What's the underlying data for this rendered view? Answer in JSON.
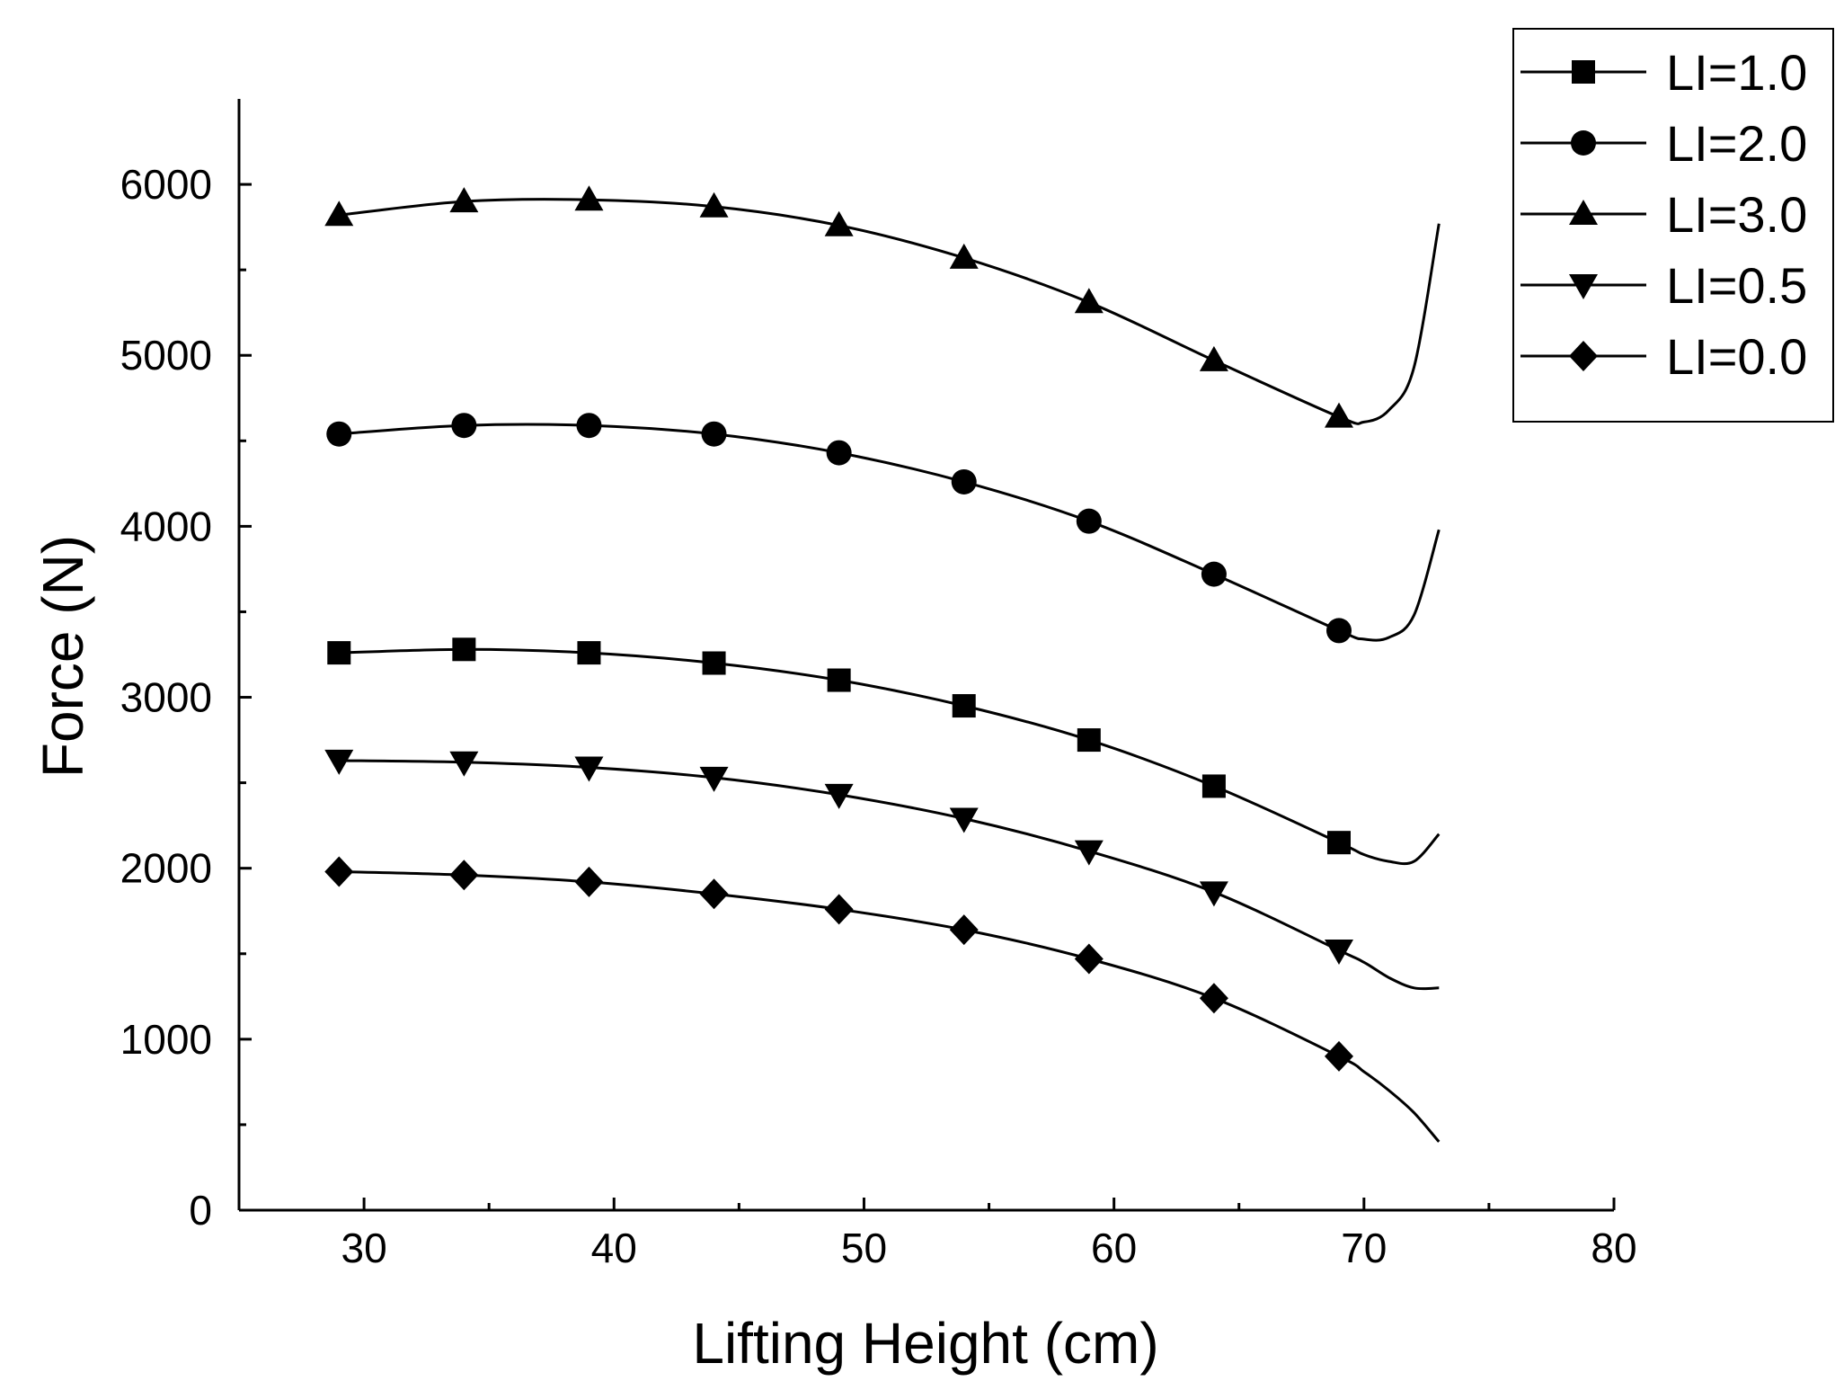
{
  "chart_data": {
    "type": "line",
    "title": "",
    "xlabel": "Lifting Height (cm)",
    "ylabel": "Force (N)",
    "xlim": [
      25,
      80
    ],
    "ylim": [
      0,
      6500
    ],
    "xticks": [
      30,
      40,
      50,
      60,
      70,
      80
    ],
    "yticks": [
      0,
      1000,
      2000,
      3000,
      4000,
      5000,
      6000
    ],
    "grid": false,
    "legend_position": "top-right",
    "series": [
      {
        "name": "LI=1.0",
        "marker": "square",
        "markers": {
          "x": [
            29,
            34,
            39,
            44,
            49,
            54,
            59,
            64,
            69
          ],
          "y": [
            3260,
            3280,
            3260,
            3200,
            3100,
            2950,
            2750,
            2480,
            2150
          ]
        },
        "curve": {
          "x": [
            29,
            34,
            39,
            44,
            49,
            54,
            59,
            64,
            69,
            70,
            71,
            72,
            73
          ],
          "y": [
            3260,
            3280,
            3260,
            3200,
            3100,
            2950,
            2750,
            2480,
            2150,
            2080,
            2040,
            2040,
            2200
          ]
        }
      },
      {
        "name": "LI=2.0",
        "marker": "circle",
        "markers": {
          "x": [
            29,
            34,
            39,
            44,
            49,
            54,
            59,
            64,
            69
          ],
          "y": [
            4540,
            4590,
            4590,
            4540,
            4430,
            4260,
            4030,
            3720,
            3390
          ]
        },
        "curve": {
          "x": [
            29,
            34,
            39,
            44,
            49,
            54,
            59,
            64,
            69,
            70,
            71,
            72,
            73
          ],
          "y": [
            4540,
            4590,
            4590,
            4540,
            4430,
            4260,
            4030,
            3720,
            3390,
            3340,
            3350,
            3480,
            3980
          ]
        }
      },
      {
        "name": "LI=3.0",
        "marker": "triangle-up",
        "markers": {
          "x": [
            29,
            34,
            39,
            44,
            49,
            54,
            59,
            64,
            69
          ],
          "y": [
            5820,
            5900,
            5910,
            5870,
            5760,
            5570,
            5310,
            4970,
            4640
          ]
        },
        "curve": {
          "x": [
            29,
            34,
            39,
            44,
            49,
            54,
            59,
            64,
            69,
            70,
            71,
            72,
            73
          ],
          "y": [
            5820,
            5900,
            5910,
            5870,
            5760,
            5570,
            5310,
            4970,
            4640,
            4610,
            4680,
            4930,
            5770
          ]
        }
      },
      {
        "name": "LI=0.5",
        "marker": "triangle-down",
        "markers": {
          "x": [
            29,
            34,
            39,
            44,
            49,
            54,
            59,
            64,
            69
          ],
          "y": [
            2630,
            2620,
            2590,
            2530,
            2430,
            2290,
            2100,
            1860,
            1520
          ]
        },
        "curve": {
          "x": [
            29,
            34,
            39,
            44,
            49,
            54,
            59,
            64,
            69,
            70,
            71,
            72,
            73
          ],
          "y": [
            2630,
            2620,
            2590,
            2530,
            2430,
            2290,
            2100,
            1860,
            1520,
            1450,
            1360,
            1300,
            1300
          ]
        }
      },
      {
        "name": "LI=0.0",
        "marker": "diamond",
        "markers": {
          "x": [
            29,
            34,
            39,
            44,
            49,
            54,
            59,
            64,
            69
          ],
          "y": [
            1980,
            1960,
            1920,
            1850,
            1760,
            1640,
            1470,
            1240,
            900
          ]
        },
        "curve": {
          "x": [
            29,
            34,
            39,
            44,
            49,
            54,
            59,
            64,
            69,
            70,
            71,
            72,
            73
          ],
          "y": [
            1980,
            1960,
            1920,
            1850,
            1760,
            1640,
            1470,
            1240,
            900,
            810,
            700,
            570,
            400
          ]
        }
      }
    ]
  }
}
